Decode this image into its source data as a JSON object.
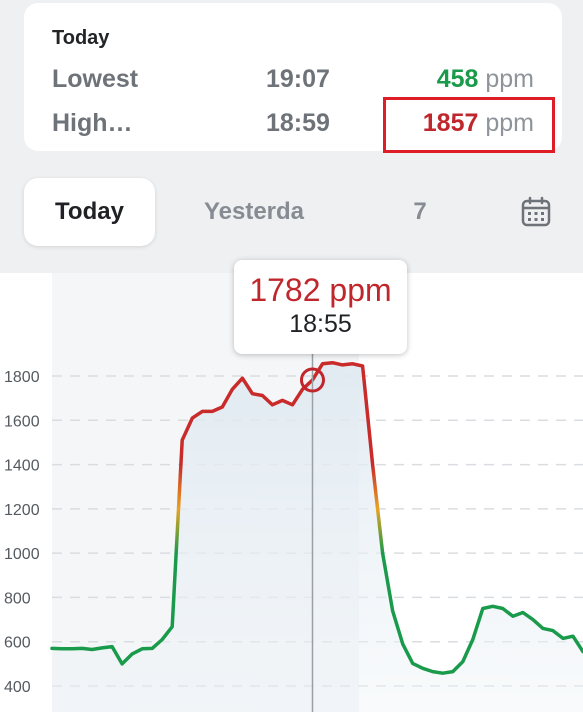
{
  "summary": {
    "title": "Today",
    "rows": [
      {
        "label": "Lowest",
        "time": "19:07",
        "value": "458",
        "unit": "ppm",
        "color": "#1a9a4b"
      },
      {
        "label": "High…",
        "time": "18:59",
        "value": "1857",
        "unit": "ppm",
        "color": "#c0272d"
      }
    ]
  },
  "tabs": [
    {
      "label": "Today",
      "active": true
    },
    {
      "label": "Yesterda",
      "active": false
    },
    {
      "label": "7",
      "active": false
    }
  ],
  "calendar_icon": "calendar-icon",
  "tooltip": {
    "value": "1782 ppm",
    "time": "18:55"
  },
  "chart_data": {
    "type": "line",
    "y_ticks": [
      1800,
      1600,
      1400,
      1200,
      1000,
      800,
      600,
      400
    ],
    "ylim": [
      350,
      1900
    ],
    "unit": "ppm",
    "grid": true,
    "color_thresholds": {
      "low": "#1a9a4b",
      "mid": "#e7a323",
      "high": "#c92a2a",
      "mid_from": 1000,
      "high_from": 1400
    },
    "series": [
      {
        "values": [
          570,
          568,
          568,
          570,
          565,
          572,
          578,
          500,
          545,
          568,
          570,
          610,
          668,
          1510,
          1610,
          1640,
          1640,
          1660,
          1740,
          1790,
          1720,
          1712,
          1670,
          1690,
          1670,
          1740,
          1782,
          1855,
          1860,
          1850,
          1855,
          1845,
          1400,
          1000,
          740,
          590,
          502,
          480,
          465,
          458,
          465,
          510,
          610,
          750,
          760,
          750,
          715,
          732,
          700,
          660,
          650,
          615,
          625,
          555
        ]
      }
    ],
    "selected_index": 26
  }
}
